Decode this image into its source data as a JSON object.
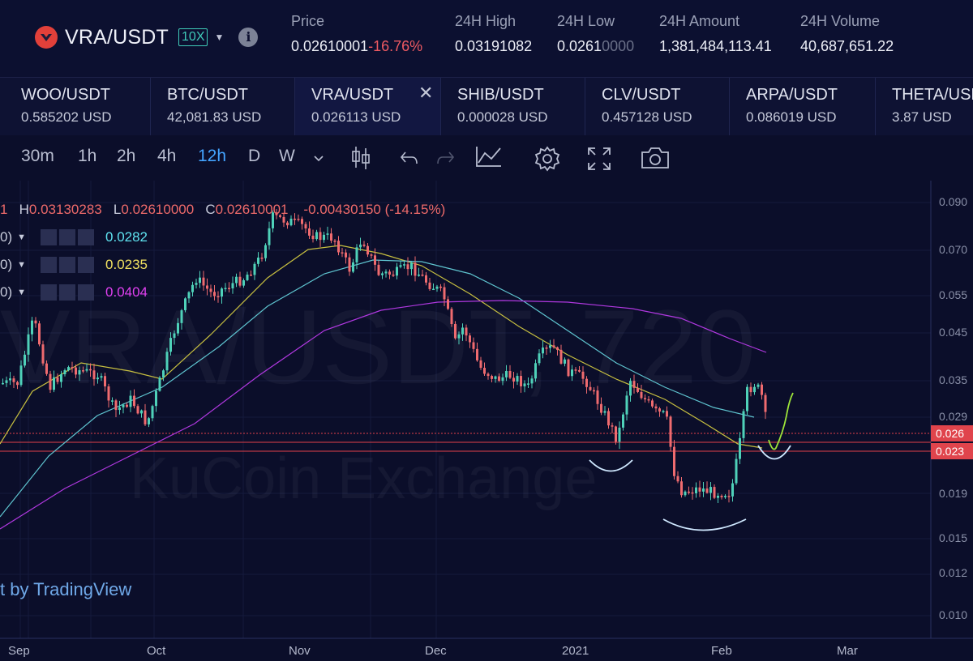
{
  "header": {
    "pair": "VRA/USDT",
    "leverage": "10X",
    "stats": [
      {
        "label": "Price",
        "value": "0.02610001",
        "change": "-16.76%"
      },
      {
        "label": "24H High",
        "value": "0.03191082"
      },
      {
        "label": "24H Low",
        "value": "0.0261",
        "value_dim": "0000"
      },
      {
        "label": "24H Amount",
        "value": "1,381,484,113.41"
      },
      {
        "label": "24H Volume",
        "value": "40,687,651.22"
      }
    ]
  },
  "tabs": [
    {
      "name": "WOO/USDT",
      "price": "0.585202 USD"
    },
    {
      "name": "BTC/USDT",
      "price": "42,081.83 USD"
    },
    {
      "name": "VRA/USDT",
      "price": "0.026113 USD",
      "active": true
    },
    {
      "name": "SHIB/USDT",
      "price": "0.000028 USD"
    },
    {
      "name": "CLV/USDT",
      "price": "0.457128 USD"
    },
    {
      "name": "ARPA/USDT",
      "price": "0.086019 USD"
    },
    {
      "name": "THETA/USDT",
      "price": "3.87 USD"
    }
  ],
  "toolbar": {
    "timeframes": [
      "30m",
      "1h",
      "2h",
      "4h",
      "12h",
      "D",
      "W"
    ],
    "active_timeframe": "12h",
    "icons": [
      "chevron-down-icon",
      "candle-type-icon",
      "undo-icon",
      "redo-icon",
      "indicators-icon",
      "settings-icon",
      "fullscreen-icon",
      "screenshot-icon"
    ]
  },
  "chart": {
    "ohlc": {
      "o_tail": "1",
      "h": "0.03130283",
      "l": "0.02610000",
      "c": "0.02610001",
      "change": "-0.00430150 (-14.15%)"
    },
    "ma_rows": [
      {
        "paren": "0)",
        "value": "0.0282",
        "color": "#5fe3f0"
      },
      {
        "paren": "0)",
        "value": "0.0235",
        "color": "#f0e060"
      },
      {
        "paren": "0)",
        "value": "0.0404",
        "color": "#e040f0"
      }
    ],
    "credit": "t by TradingView",
    "watermark_pair": "VRA/USDT, 720",
    "watermark_exchange": "KuCoin Exchange",
    "y_ticks": [
      "0.090",
      "0.070",
      "0.055",
      "0.045",
      "0.035",
      "0.029",
      "0.019",
      "0.015",
      "0.012",
      "0.010"
    ],
    "x_ticks": [
      "Sep",
      "Oct",
      "Nov",
      "Dec",
      "2021",
      "Feb",
      "Mar"
    ],
    "price_tags": [
      "0.026",
      "0.023"
    ],
    "colors": {
      "up": "#4fd1b9",
      "down": "#ef6b6f",
      "ma1": "#5fc5d0",
      "ma2": "#c8c040",
      "ma3": "#b038e0",
      "line": "#e0404a"
    }
  }
}
